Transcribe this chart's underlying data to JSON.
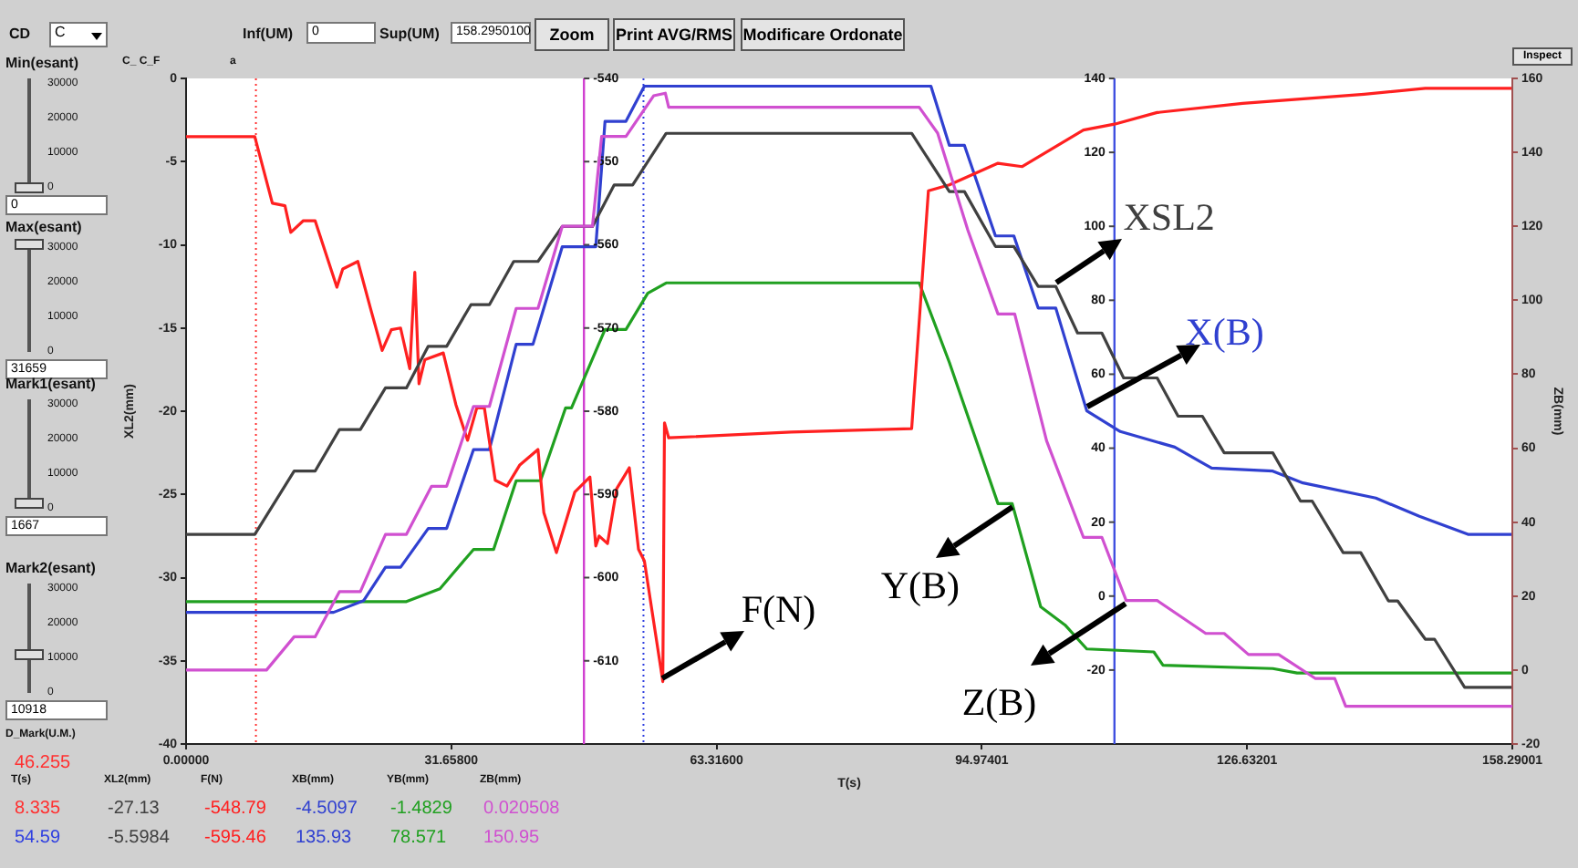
{
  "chart_data": [
    {
      "type": "line",
      "xlabel": "T(s)",
      "ylabel": "XL2(mm)",
      "xlim": [
        0,
        158.29001
      ],
      "xticks": [
        {
          "value": 0,
          "label": "0.00000"
        },
        {
          "value": 31.658,
          "label": "31.65800"
        },
        {
          "value": 63.316,
          "label": "63.31600"
        },
        {
          "value": 94.97401,
          "label": "94.97401"
        },
        {
          "value": 126.63201,
          "label": "126.63201"
        },
        {
          "value": 158.29001,
          "label": "158.29001"
        }
      ],
      "ylim": [
        -40,
        0
      ],
      "yticks": [
        -40,
        -35,
        -30,
        -25,
        -20,
        -15,
        -10,
        -5,
        0
      ],
      "y2lim": [
        -620,
        -540
      ],
      "y2ticks": [
        -610,
        -600,
        -590,
        -580,
        -570,
        -560,
        -550,
        -540
      ],
      "y3lim": [
        -40,
        140
      ],
      "y3ticks": [
        -20,
        0,
        20,
        40,
        60,
        80,
        100,
        120,
        140
      ],
      "series": [
        {
          "name": "XSL2",
          "color": "#404040",
          "x": [
            0,
            8.2,
            12.9,
            15.4,
            18.3,
            20.8,
            23.8,
            26.3,
            28.9,
            31.1,
            34,
            36.2,
            39.1,
            42,
            44.9,
            48.5,
            51.1,
            53.3,
            57.3,
            86.6,
            91.1,
            92.9,
            96.6,
            98.8,
            101.7,
            103.8,
            106.4,
            109.3,
            111.9,
            115.9,
            118.4,
            121.3,
            123.9,
            129.7,
            133,
            134.4,
            138.1,
            140.2,
            143.5,
            144.6,
            147.9,
            149,
            152.6,
            158.29
          ],
          "values": [
            -27.4,
            -27.4,
            -23.6,
            -23.6,
            -21.1,
            -21.1,
            -18.6,
            -18.6,
            -16.1,
            -16.1,
            -13.6,
            -13.6,
            -11,
            -11,
            -8.9,
            -8.9,
            -6.4,
            -6.4,
            -3.3,
            -3.3,
            -6.8,
            -6.8,
            -10.1,
            -10.1,
            -12.5,
            -12.5,
            -15.3,
            -15.3,
            -18,
            -18,
            -20.3,
            -20.3,
            -22.5,
            -22.5,
            -25.4,
            -25.4,
            -28.5,
            -28.5,
            -31.4,
            -31.4,
            -33.7,
            -33.7,
            -36.6,
            -36.6
          ]
        },
        {
          "name": "F(N)",
          "color": "#ff2020",
          "axis": "y2",
          "x": [
            0,
            8.2,
            10.3,
            11.8,
            12.5,
            14,
            15.4,
            18,
            18.7,
            20.5,
            22,
            23.4,
            24.5,
            25.6,
            26.7,
            27.3,
            27.8,
            28.5,
            30.7,
            32.2,
            33.6,
            34.7,
            35.6,
            36.9,
            38.3,
            39.8,
            42,
            42.7,
            44.2,
            46.4,
            48.2,
            48.9,
            49.3,
            50.3,
            51.4,
            52.9,
            54,
            54.7,
            56.9,
            57.1,
            57.6,
            72.2,
            86.6,
            88.6,
            91.1,
            96.9,
            99.8,
            107.1,
            110.8,
            115.9,
            126.1,
            140.6,
            147.9,
            158.29
          ],
          "values": [
            -547,
            -547,
            -555,
            -555.3,
            -558.5,
            -557.1,
            -557.1,
            -565.1,
            -562.9,
            -562,
            -567.6,
            -572.7,
            -570.2,
            -570,
            -574.9,
            -563.3,
            -576.7,
            -573.8,
            -573,
            -579.2,
            -583.5,
            -579.6,
            -579.6,
            -588.3,
            -589,
            -586.5,
            -584.6,
            -592.2,
            -597,
            -589.7,
            -587.9,
            -596.2,
            -595,
            -595.9,
            -589.3,
            -586.8,
            -596.6,
            -598,
            -612.5,
            -581.4,
            -583.2,
            -582.5,
            -582.1,
            -553.5,
            -552.8,
            -550.2,
            -550.6,
            -546.2,
            -545.5,
            -544.1,
            -543,
            -541.9,
            -541.2,
            -541.2
          ]
        },
        {
          "name": "X(B)",
          "color": "#3040d0",
          "axis": "y3",
          "x": [
            0,
            17.6,
            21.2,
            23.8,
            25.6,
            28.9,
            31.1,
            34.3,
            36.2,
            39.4,
            41.4,
            44.9,
            48.9,
            50,
            52.5,
            54.7,
            88.9,
            91.1,
            92.9,
            96.6,
            98.8,
            101.7,
            103.8,
            107.5,
            111.5,
            118,
            122.4,
            129.7,
            133.3,
            142,
            147.2,
            153,
            158.29
          ],
          "values": [
            -4.4,
            -4.4,
            -1.2,
            7.8,
            7.8,
            18.3,
            18.3,
            39.6,
            39.6,
            68.1,
            68.1,
            94.5,
            94.5,
            128.4,
            128.4,
            137.9,
            137.9,
            121.9,
            121.9,
            97.4,
            97.4,
            77.9,
            77.9,
            50.1,
            44.5,
            40.3,
            34.6,
            33.8,
            30.6,
            26.5,
            21.6,
            16.7,
            16.7
          ]
        },
        {
          "name": "Y(B)",
          "color": "#20a020",
          "axis": "y3",
          "x": [
            0,
            26.3,
            30.3,
            34.3,
            36.7,
            39.4,
            42.3,
            45.3,
            46,
            50,
            52.5,
            55.1,
            57.3,
            87.5,
            91.1,
            96.9,
            98.6,
            102,
            104.9,
            107.5,
            115.5,
            116.6,
            129.7,
            132.6,
            158.29
          ],
          "values": [
            -1.5,
            -1.5,
            2,
            12.6,
            12.6,
            31.2,
            31.2,
            50.9,
            50.9,
            72.1,
            72.1,
            81.9,
            84.7,
            84.7,
            63.2,
            25,
            25,
            -2.9,
            -7.8,
            -14.3,
            -15.1,
            -18.7,
            -19.6,
            -20.8,
            -20.8
          ]
        }
      ],
      "ref_lines": [
        {
          "axis": "x",
          "value": 8.335,
          "color": "#ff3030",
          "line_style": "dotted"
        },
        {
          "axis": "x",
          "value": 54.59,
          "color": "#3040e0",
          "line_style": "dotted"
        }
      ],
      "annotations": [
        "CD",
        "C",
        "Inf(UM)",
        "0",
        "Sup(UM)",
        "158.2950100",
        "Zoom",
        "Print AVG/RMS",
        "Modificare Ordonate",
        "C_ C_F",
        "a",
        "Inspect",
        "Min(esant)",
        "30000",
        "20000",
        "10000",
        "0",
        "0",
        "Max(esant)",
        "30000",
        "20000",
        "10000",
        "0",
        "31659",
        "Mark1(esant)",
        "30000",
        "20000",
        "10000",
        "0",
        "1667",
        "Mark2(esant)",
        "30000",
        "20000",
        "10000",
        "0",
        "10918",
        "D_Mark(U.M.)",
        "46.255",
        "T(s)",
        "XL2(mm)",
        "F(N)",
        "XB(mm)",
        "YB(mm)",
        "ZB(mm)",
        "8.335",
        "-27.13",
        "-548.79",
        "-4.5097",
        "-1.4829",
        "0.020508",
        "54.59",
        "-5.5984",
        "-595.46",
        "135.93",
        "78.571",
        "150.95"
      ]
    },
    {
      "type": "line",
      "ylabel": "ZB(mm)",
      "xlim": [
        0,
        158.29001
      ],
      "ylim": [
        -20,
        160
      ],
      "yticks": [
        -20,
        0,
        20,
        40,
        60,
        80,
        100,
        120,
        140,
        160
      ],
      "tick_labels": "y",
      "series": [
        {
          "name": "Z(B)",
          "color": "#d050d0",
          "x": [
            0,
            9.6,
            12.9,
            15.4,
            18.3,
            20.8,
            23.8,
            26.3,
            29.3,
            31.1,
            34.3,
            36.2,
            39.4,
            42,
            44.9,
            48.5,
            49.6,
            52.5,
            55.8,
            57.2,
            57.6,
            87.5,
            89.7,
            93.3,
            96.9,
            98.9,
            102.7,
            107.1,
            109.3,
            112.2,
            115.9,
            121.7,
            123.9,
            126.8,
            130.4,
            134.8,
            137.1,
            138.4,
            158.29
          ],
          "values": [
            0,
            0,
            9,
            9,
            21.2,
            21.2,
            36.7,
            36.7,
            49.7,
            49.7,
            71.3,
            71.3,
            97.8,
            97.8,
            120,
            120,
            144.3,
            144.3,
            155.3,
            156,
            152.2,
            152.2,
            145.2,
            119,
            96.3,
            96.3,
            62,
            35.9,
            35.9,
            18.8,
            18.8,
            9.9,
            9.9,
            4.2,
            4.2,
            -2.3,
            -2.3,
            -9.8,
            -9.8
          ]
        }
      ]
    }
  ]
}
